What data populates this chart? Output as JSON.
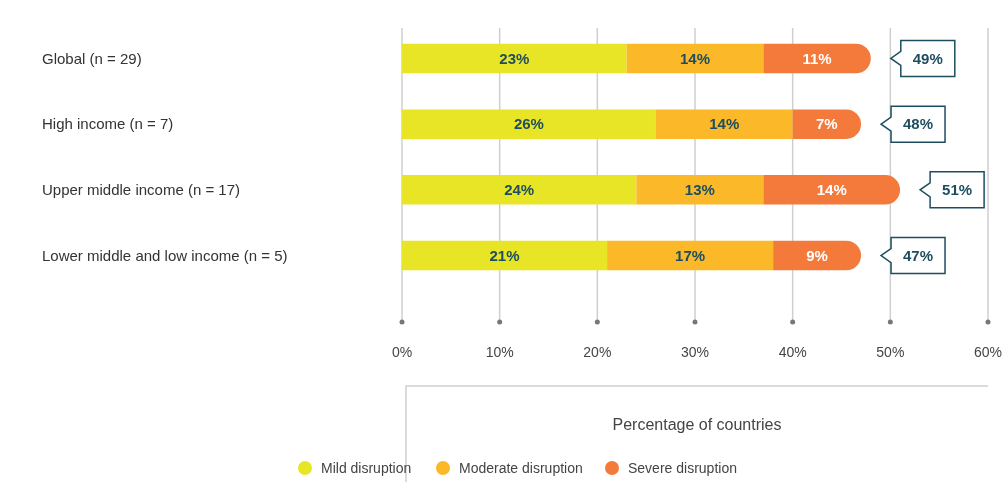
{
  "chart_data": {
    "type": "bar",
    "orientation": "horizontal",
    "stacked": true,
    "categories": [
      "Global (n = 29)",
      "High income (n = 7)",
      "Upper middle income (n = 17)",
      "Lower middle and low income (n = 5)"
    ],
    "series": [
      {
        "name": "Mild disruption",
        "color": "#e8e526",
        "values": [
          23,
          26,
          24,
          21
        ],
        "value_labels": [
          "23%",
          "26%",
          "24%",
          "21%"
        ]
      },
      {
        "name": "Moderate disruption",
        "color": "#fbb829",
        "values": [
          14,
          14,
          13,
          17
        ],
        "value_labels": [
          "14%",
          "14%",
          "13%",
          "17%"
        ]
      },
      {
        "name": "Severe disruption",
        "color": "#f47a3c",
        "values": [
          11,
          7,
          14,
          9
        ],
        "value_labels": [
          "11%",
          "7%",
          "14%",
          "9%"
        ]
      }
    ],
    "xlim": [
      0,
      60
    ],
    "xticks": [
      {
        "value": 0,
        "label": "0%"
      },
      {
        "value": 10,
        "label": "10%"
      },
      {
        "value": 20,
        "label": "20%"
      },
      {
        "value": 30,
        "label": "30%"
      },
      {
        "value": 40,
        "label": "40%"
      },
      {
        "value": 50,
        "label": "50%"
      },
      {
        "value": 60,
        "label": "60%"
      }
    ],
    "xlabel": "Percentage of countries",
    "totals": [
      "49%",
      "48%",
      "51%",
      "47%"
    ],
    "grid": "x",
    "legend": "bottom"
  }
}
